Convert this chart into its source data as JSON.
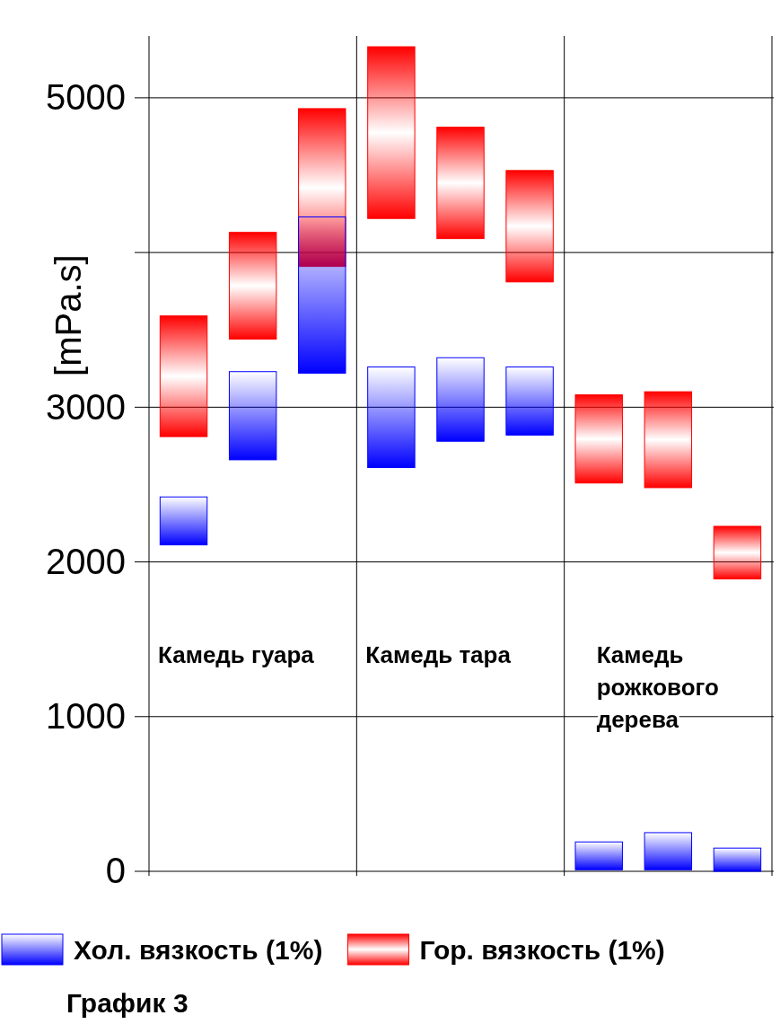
{
  "chart_data": {
    "type": "bar",
    "title": "График 3",
    "ylabel": "[mPa.s]",
    "categories": [
      null,
      null,
      null,
      null,
      null,
      null,
      null,
      null,
      null
    ],
    "series": [
      {
        "name": "Гор. вязкость (1%)",
        "color": "#ff0000",
        "base": [
          2810,
          3440,
          3910,
          4220,
          4090,
          3810,
          2510,
          2480,
          1890
        ],
        "values": [
          780,
          690,
          1020,
          1110,
          720,
          720,
          570,
          620,
          340
        ]
      },
      {
        "name": "Хол. вязкость (1%)",
        "color": "#0000ff",
        "base": [
          2110,
          2660,
          3220,
          2610,
          2780,
          2820,
          10,
          10,
          0
        ],
        "values": [
          310,
          570,
          1010,
          650,
          540,
          440,
          180,
          240,
          150
        ]
      }
    ],
    "ylim": [
      0,
      5400
    ],
    "yticks": [
      0,
      1000,
      2000,
      3000,
      {
        "value": 4000,
        "label": null
      },
      5000
    ],
    "grid": true,
    "legend": "bottom",
    "annotations": [
      "Камедь гуара",
      "Камедь тара",
      "Камедь рожкового дерева"
    ]
  }
}
